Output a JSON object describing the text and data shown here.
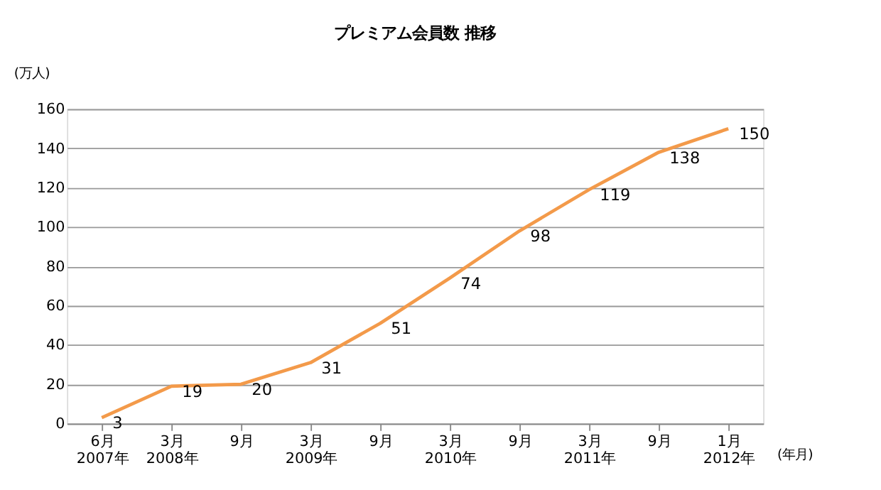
{
  "chart_data": {
    "type": "line",
    "title": "プレミアム会員数  推移",
    "ylabel": "(万人)",
    "xlabel": "(年月)",
    "categories": [
      "6月\n2007年",
      "3月\n2008年",
      "9月",
      "3月\n2009年",
      "9月",
      "3月\n2010年",
      "9月",
      "3月\n2011年",
      "9月",
      "1月\n2012年"
    ],
    "series": [
      {
        "color": "#f39a4a",
        "values": [
          3,
          19,
          20,
          31,
          51,
          74,
          98,
          119,
          138,
          150
        ]
      }
    ],
    "ylim": [
      0,
      160
    ],
    "yticks": [
      0,
      20,
      40,
      60,
      80,
      100,
      120,
      140,
      160
    ],
    "grid": "y",
    "data_labels": true,
    "marker": "none",
    "line_style": "solid"
  }
}
